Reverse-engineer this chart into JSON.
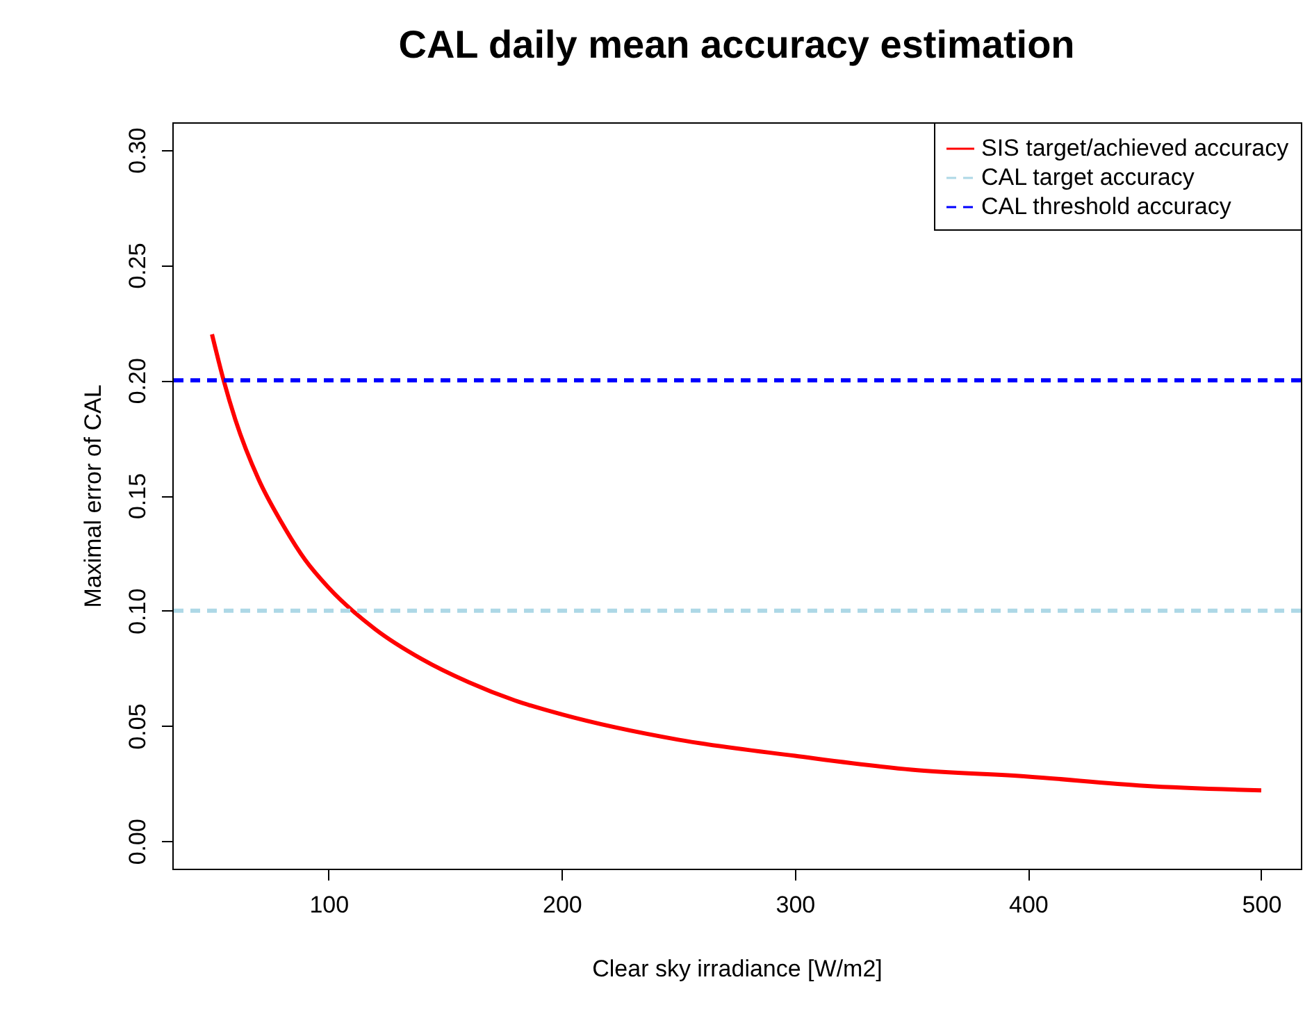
{
  "chart_data": {
    "type": "line",
    "title": "CAL daily mean accuracy estimation",
    "xlabel": "Clear sky irradiance [W/m2]",
    "ylabel": "Maximal error of CAL",
    "x": [
      50,
      55,
      60,
      70,
      80,
      90,
      100,
      120,
      140,
      160,
      180,
      200,
      250,
      300,
      350,
      400,
      450,
      500
    ],
    "series": [
      {
        "name": "SIS target/achieved accuracy",
        "color": "#ff0000",
        "line_style": "solid",
        "values": [
          0.22,
          0.2,
          0.183,
          0.157,
          0.138,
          0.122,
          0.11,
          0.092,
          0.079,
          0.069,
          0.061,
          0.055,
          0.044,
          0.037,
          0.031,
          0.028,
          0.024,
          0.022
        ]
      }
    ],
    "ref_lines": [
      {
        "axis": "y",
        "value": 0.1,
        "label": "CAL target accuracy",
        "color": "#add8e6",
        "line_style": "dashed"
      },
      {
        "axis": "y",
        "value": 0.2,
        "label": "CAL threshold accuracy",
        "color": "#0000ff",
        "line_style": "dashed"
      }
    ],
    "xlim": [
      33,
      517
    ],
    "ylim": [
      -0.012,
      0.312
    ],
    "xticks": [
      100,
      200,
      300,
      400,
      500
    ],
    "yticks": [
      {
        "value": 0,
        "label": "0.00"
      },
      {
        "value": 0.05,
        "label": "0.05"
      },
      {
        "value": 0.1,
        "label": "0.10"
      },
      {
        "value": 0.15,
        "label": "0.15"
      },
      {
        "value": 0.2,
        "label": "0.20"
      },
      {
        "value": 0.25,
        "label": "0.25"
      },
      {
        "value": 0.3,
        "label": "0.30"
      }
    ],
    "legend": "top right",
    "grid": false
  }
}
